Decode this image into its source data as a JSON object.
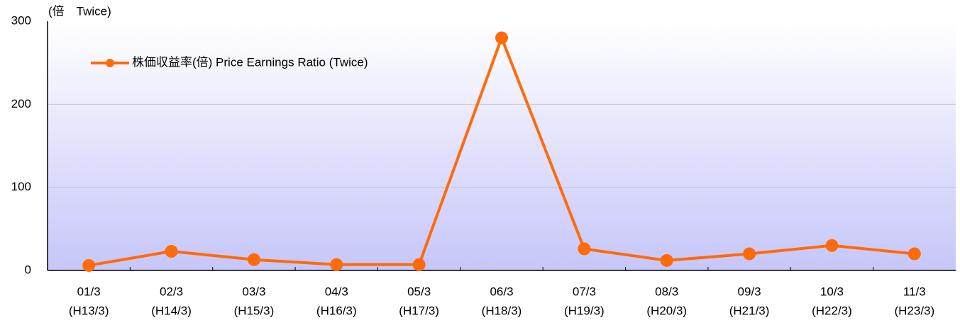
{
  "chart_data": {
    "type": "line",
    "y_label": "(倍　Twice)",
    "categories": [
      [
        "01/3",
        "(H13/3)"
      ],
      [
        "02/3",
        "(H14/3)"
      ],
      [
        "03/3",
        "(H15/3)"
      ],
      [
        "04/3",
        "(H16/3)"
      ],
      [
        "05/3",
        "(H17/3)"
      ],
      [
        "06/3",
        "(H18/3)"
      ],
      [
        "07/3",
        "(H19/3)"
      ],
      [
        "08/3",
        "(H20/3)"
      ],
      [
        "09/3",
        "(H21/3)"
      ],
      [
        "10/3",
        "(H22/3)"
      ],
      [
        "11/3",
        "(H23/3)"
      ]
    ],
    "series": [
      {
        "name": "株価収益率(倍) Price Earnings Ratio (Twice)",
        "color": "#ff6a0a",
        "values": [
          6,
          23,
          13,
          7,
          7,
          280,
          26,
          12,
          20,
          30,
          20
        ]
      }
    ],
    "ylim": [
      0,
      300
    ],
    "yticks": [
      0,
      100,
      200,
      300
    ],
    "grid": true,
    "legend": "top-left"
  }
}
